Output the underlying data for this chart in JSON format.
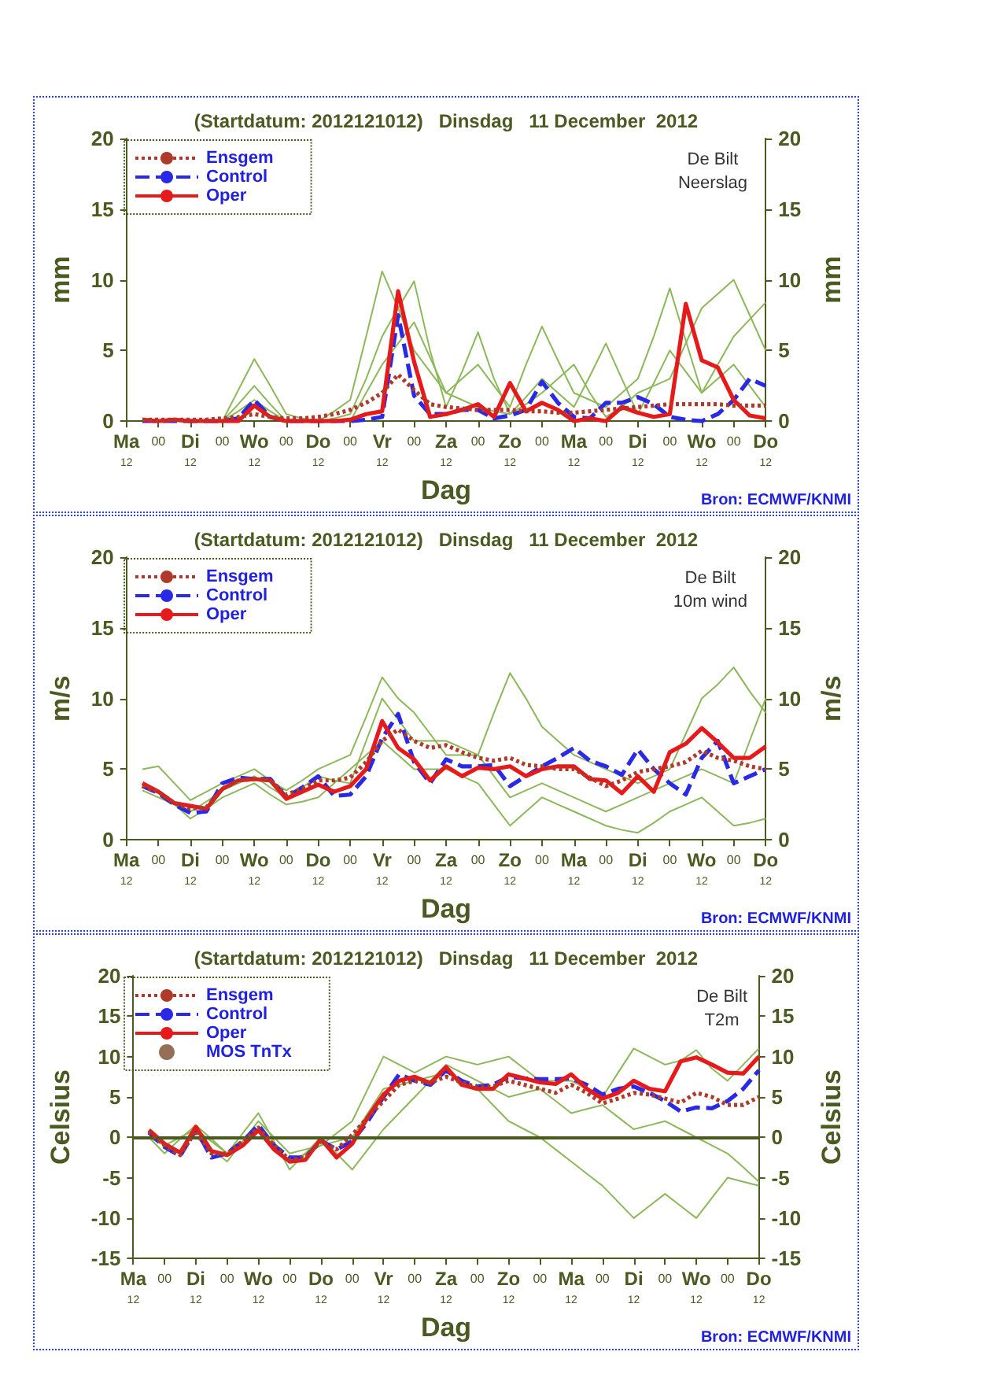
{
  "chart_data": [
    {
      "type": "line",
      "title": "(Startdatum: 2012121012)   Dinsdag   11 December  2012",
      "xlabel": "Dag",
      "ylabel": "mm",
      "y2label": "mm",
      "annotations": [
        "De Bilt\nNeerslag",
        "Bron: ECMWF/KNMI"
      ],
      "categories": [
        "Ma\n12",
        null,
        "00",
        null,
        "Di\n12",
        null,
        "00",
        null,
        "Wo\n12",
        null,
        "00",
        null,
        "Do\n12",
        null,
        "00",
        null,
        "Vr\n12",
        null,
        "00",
        null,
        "Za\n12",
        null,
        "00",
        null,
        "Zo\n12",
        null,
        "00",
        null,
        "Ma\n12",
        null,
        "00",
        null,
        "Di\n12",
        null,
        "00",
        null,
        "Wo\n12",
        null,
        "00",
        null,
        "Do\n12"
      ],
      "ylim": [
        0,
        20
      ],
      "yticks": [
        0,
        5,
        10,
        15,
        20
      ],
      "y2lim": [
        0,
        20
      ],
      "y2ticks": [
        0,
        5,
        10,
        15,
        20
      ],
      "legend": "top left",
      "marker": "none",
      "series": [
        {
          "color": "#8db85a",
          "values": [
            null,
            null,
            null,
            null,
            null,
            null,
            0,
            1.2,
            2.5,
            1.2,
            0,
            0,
            0,
            0.7,
            1.5,
            6,
            10.6,
            8,
            5,
            3.5,
            2,
            3,
            4,
            2.5,
            1,
            4,
            6.7,
            4.3,
            2,
            1.5,
            1,
            2,
            3,
            6,
            9.4,
            5.7,
            2,
            3,
            4,
            2.5,
            1
          ]
        },
        {
          "color": "#8db85a",
          "values": [
            null,
            null,
            null,
            null,
            null,
            null,
            0,
            2.2,
            4.4,
            2.5,
            0.5,
            0.2,
            0,
            0.2,
            0.5,
            3,
            6,
            8,
            9.9,
            5,
            1,
            3.5,
            6.3,
            3,
            0.5,
            1.2,
            2,
            3,
            4,
            2,
            0.3,
            1,
            2,
            2.5,
            3,
            5.5,
            8,
            9,
            10,
            7.5,
            5
          ]
        },
        {
          "color": "#8db85a",
          "values": [
            null,
            null,
            null,
            null,
            null,
            null,
            0,
            0.7,
            1.5,
            0.7,
            0,
            0,
            0,
            0,
            0,
            2,
            4,
            5.5,
            7,
            4.5,
            2,
            1.5,
            1,
            0.7,
            0.5,
            1.7,
            3,
            2,
            1,
            3.2,
            5.5,
            3,
            0.5,
            2.7,
            5,
            3.5,
            2,
            4,
            6,
            7.2,
            8.4
          ]
        },
        {
          "name": "Ensgem",
          "color": "#b03a2a",
          "line_style": "dotted",
          "values": [
            null,
            0.1,
            0.1,
            0.1,
            0.1,
            0.1,
            0.2,
            0.3,
            0.5,
            0.3,
            0.2,
            0.2,
            0.3,
            0.5,
            0.8,
            1.3,
            2,
            3.3,
            2.2,
            1.2,
            1,
            0.9,
            0.8,
            0.8,
            0.8,
            0.7,
            0.7,
            0.6,
            0.6,
            0.7,
            0.8,
            0.9,
            1,
            1.1,
            1.2,
            1.2,
            1.2,
            1.2,
            1.1,
            1.1,
            1.1
          ]
        },
        {
          "name": "Control",
          "color": "#2a2ae6",
          "line_style": "dashed",
          "values": [
            null,
            0,
            0,
            0,
            0,
            0,
            0,
            0.2,
            1.5,
            0.3,
            0,
            0,
            0,
            0,
            0,
            0.1,
            0.3,
            7.5,
            1.8,
            0.5,
            0.5,
            0.8,
            0.8,
            0.2,
            0.4,
            0.8,
            2.8,
            1.3,
            0.3,
            0.2,
            1.3,
            1.3,
            1.7,
            1.2,
            0.3,
            0.1,
            0,
            0.5,
            1.5,
            3,
            2.5
          ]
        },
        {
          "name": "Oper",
          "color": "#e61a1a",
          "line_style": "solid",
          "values": [
            null,
            0.1,
            0,
            0.1,
            0,
            0,
            0,
            0,
            1.1,
            0.3,
            0,
            0,
            0,
            0,
            0.1,
            0.5,
            0.7,
            9.2,
            4.2,
            0.3,
            0.5,
            0.8,
            1.2,
            0.3,
            2.7,
            0.7,
            1.3,
            0.8,
            0,
            0.2,
            0,
            1,
            0.6,
            0.3,
            0.5,
            8.3,
            4.3,
            3.8,
            1.5,
            0.4,
            0.2
          ]
        }
      ]
    },
    {
      "type": "line",
      "title": "(Startdatum: 2012121012)   Dinsdag   11 December  2012",
      "xlabel": "Dag",
      "ylabel": "m/s",
      "y2label": "m/s",
      "annotations": [
        "De Bilt\n10m wind",
        "Bron: ECMWF/KNMI"
      ],
      "categories": [
        "Ma\n12",
        null,
        "00",
        null,
        "Di\n12",
        null,
        "00",
        null,
        "Wo\n12",
        null,
        "00",
        null,
        "Do\n12",
        null,
        "00",
        null,
        "Vr\n12",
        null,
        "00",
        null,
        "Za\n12",
        null,
        "00",
        null,
        "Zo\n12",
        null,
        "00",
        null,
        "Ma\n12",
        null,
        "00",
        null,
        "Di\n12",
        null,
        "00",
        null,
        "Wo\n12",
        null,
        "00",
        null,
        "Do\n12"
      ],
      "ylim": [
        0,
        20
      ],
      "yticks": [
        0,
        5,
        10,
        15,
        20
      ],
      "y2lim": [
        0,
        20
      ],
      "y2ticks": [
        0,
        5,
        10,
        15,
        20
      ],
      "legend": "top left",
      "marker": "none",
      "series": [
        {
          "color": "#8db85a",
          "values": [
            null,
            3.5,
            3,
            2.5,
            2,
            2.7,
            3.5,
            4,
            4.5,
            3.7,
            3,
            3.7,
            4.5,
            4.2,
            4,
            7,
            10,
            8.5,
            7,
            7,
            7,
            6.5,
            6,
            9,
            11.8,
            10,
            8,
            7,
            6,
            5.5,
            5,
            4.5,
            4,
            4.5,
            5,
            7.5,
            10,
            11,
            12.2,
            10.5,
            9
          ]
        },
        {
          "color": "#8db85a",
          "values": [
            null,
            5,
            5.2,
            4,
            2.8,
            3.4,
            4,
            4.5,
            5,
            4.2,
            3.5,
            4.2,
            5,
            5.5,
            6,
            8.7,
            11.5,
            10,
            9,
            7.5,
            6,
            6,
            6,
            4.5,
            3,
            3.5,
            4,
            3.5,
            3,
            2.5,
            2,
            2.5,
            3,
            3.5,
            4,
            4.5,
            5,
            4.5,
            4,
            7,
            10
          ]
        },
        {
          "color": "#8db85a",
          "values": [
            null,
            4,
            3.5,
            2.5,
            1.5,
            2.2,
            3,
            3.5,
            4,
            3.2,
            2.5,
            2.7,
            3,
            4,
            5,
            6,
            7,
            6,
            5,
            5,
            5,
            4.5,
            4,
            2.5,
            1,
            2,
            3,
            2.5,
            2,
            1.5,
            1,
            0.7,
            0.5,
            1.2,
            2,
            2.5,
            3,
            2,
            1,
            1.2,
            1.5
          ]
        },
        {
          "name": "Ensgem",
          "color": "#b03a2a",
          "line_style": "dotted",
          "values": [
            null,
            3.8,
            3.4,
            2.6,
            2.2,
            2.3,
            3.6,
            4.2,
            4.3,
            4.2,
            3.2,
            3.6,
            4.2,
            4.2,
            4.4,
            5.5,
            7,
            7.8,
            7,
            6.5,
            6.7,
            6.2,
            5.8,
            5.6,
            5.8,
            5.3,
            5.2,
            5,
            5,
            4.4,
            3.8,
            4.2,
            4.8,
            5,
            5.2,
            5.5,
            6.3,
            5.8,
            5.6,
            5.2,
            5
          ]
        },
        {
          "name": "Control",
          "color": "#2a2ae6",
          "line_style": "dashed",
          "values": [
            null,
            3.8,
            3.3,
            2.5,
            1.9,
            2,
            4,
            4.4,
            4.3,
            4.3,
            3,
            3.7,
            4.5,
            3.1,
            3.2,
            4.5,
            7.2,
            8.9,
            5.5,
            4,
            5.7,
            5.2,
            5.2,
            5.3,
            3.8,
            4.5,
            5.2,
            5.8,
            6.5,
            5.6,
            5.2,
            4.6,
            6.4,
            5,
            4,
            3.2,
            5.8,
            7,
            4,
            4.5,
            5
          ]
        },
        {
          "name": "Oper",
          "color": "#e61a1a",
          "line_style": "solid",
          "values": [
            null,
            4,
            3.4,
            2.6,
            2.4,
            2.2,
            3.6,
            4.2,
            4.3,
            4.2,
            2.9,
            3.4,
            3.9,
            3.4,
            3.8,
            5,
            8.4,
            6.5,
            5.7,
            4.2,
            5.2,
            4.5,
            5.1,
            5,
            5.2,
            4.5,
            5,
            5.2,
            5.2,
            4.3,
            4.2,
            3.3,
            4.5,
            3.4,
            6.2,
            6.8,
            7.9,
            6.9,
            5.8,
            5.8,
            6.6
          ]
        }
      ]
    },
    {
      "type": "line",
      "title": "(Startdatum: 2012121012)   Dinsdag   11 December  2012",
      "xlabel": "Dag",
      "ylabel": "Celsius",
      "y2label": "Celsius",
      "annotations": [
        "De Bilt\nT2m",
        "Bron: ECMWF/KNMI"
      ],
      "categories": [
        "Ma\n12",
        null,
        "00",
        null,
        "Di\n12",
        null,
        "00",
        null,
        "Wo\n12",
        null,
        "00",
        null,
        "Do\n12",
        null,
        "00",
        null,
        "Vr\n12",
        null,
        "00",
        null,
        "Za\n12",
        null,
        "00",
        null,
        "Zo\n12",
        null,
        "00",
        null,
        "Ma\n12",
        null,
        "00",
        null,
        "Di\n12",
        null,
        "00",
        null,
        "Wo\n12",
        null,
        "00",
        null,
        "Do\n12"
      ],
      "ylim": [
        -15,
        20
      ],
      "yticks": [
        -15,
        -10,
        -5,
        0,
        5,
        10,
        15,
        20
      ],
      "y2lim": [
        -15,
        20
      ],
      "y2ticks": [
        -15,
        -10,
        -5,
        0,
        5,
        10,
        15,
        20
      ],
      "legend": "top left",
      "marker": "none",
      "ref_lines": [
        {
          "axis": "y",
          "value": 0,
          "color": "#4a5a20"
        }
      ],
      "series": [
        {
          "color": "#8db85a",
          "values": [
            null,
            0,
            -1,
            0,
            1,
            -0.5,
            -2,
            -0.5,
            1,
            -1,
            -3,
            -2,
            -1,
            -0.5,
            0,
            3,
            6,
            6.5,
            7,
            7.5,
            8,
            7,
            6,
            4,
            2,
            1,
            0,
            -1.5,
            -3,
            -4.5,
            -6,
            -8,
            -10,
            -8.5,
            -7,
            -8.5,
            -10,
            -7.5,
            -5,
            -5.5,
            -6
          ]
        },
        {
          "color": "#8db85a",
          "values": [
            null,
            0,
            -2,
            -0.2,
            1.5,
            -0.2,
            -2,
            0.5,
            3,
            -0.5,
            -4,
            -2,
            0,
            -2,
            -4,
            -1.5,
            1,
            3,
            5,
            7,
            9,
            8,
            7,
            6,
            5,
            5.5,
            6,
            4.5,
            3,
            3.5,
            4,
            2.5,
            1,
            1.5,
            2,
            1,
            0,
            -1,
            -2,
            -3.7,
            -5.5
          ]
        },
        {
          "color": "#8db85a",
          "values": [
            null,
            null,
            0,
            0,
            0,
            -1.5,
            -3,
            -0.5,
            2,
            0,
            -2,
            -1.5,
            -1,
            0.5,
            2,
            6,
            10,
            9,
            8,
            9,
            10,
            9.5,
            9,
            9.5,
            10,
            8.5,
            7,
            7,
            7,
            6,
            5,
            8,
            11,
            10,
            9,
            9.5,
            10.8,
            8.5,
            7,
            9,
            11
          ]
        },
        {
          "name": "Ensgem",
          "color": "#b03a2a",
          "line_style": "dotted",
          "values": [
            null,
            0.7,
            -1,
            -2.2,
            0.8,
            -2,
            -2,
            -0.5,
            1.2,
            -1,
            -2.8,
            -2.5,
            -0.5,
            -1.5,
            0.3,
            2.5,
            4.5,
            6.5,
            7,
            6.8,
            7.5,
            6.8,
            6.2,
            6.3,
            7,
            6.5,
            6,
            5.5,
            6.5,
            5.5,
            4.2,
            4.8,
            5.5,
            5.3,
            4.8,
            4.3,
            5.5,
            5,
            4,
            4,
            5
          ]
        },
        {
          "name": "Control",
          "color": "#2a2ae6",
          "line_style": "dashed",
          "values": [
            null,
            0.6,
            -1.2,
            -2.3,
            1,
            -2.5,
            -2,
            -0.5,
            1.5,
            -1,
            -2.5,
            -2.5,
            -0.4,
            -1.5,
            -0.5,
            2,
            5,
            7.8,
            7,
            6.5,
            8.3,
            7,
            6.3,
            6.5,
            7.5,
            7.3,
            7.2,
            7.2,
            7.3,
            6.5,
            5.3,
            6,
            6.3,
            5.5,
            4.5,
            3.2,
            3.7,
            3.6,
            4.5,
            6,
            8.3
          ]
        },
        {
          "name": "Oper",
          "color": "#e61a1a",
          "line_style": "solid",
          "values": [
            null,
            0.9,
            -0.8,
            -1.9,
            1.3,
            -1.7,
            -2.2,
            -1,
            0.9,
            -1.5,
            -3,
            -2.8,
            -0.2,
            -2.5,
            -0.8,
            2.5,
            5.3,
            7,
            7.5,
            6.7,
            8.7,
            6.5,
            6,
            6,
            7.8,
            7.3,
            6.8,
            6.6,
            7.8,
            6,
            4.8,
            5.5,
            7,
            6,
            5.7,
            9.4,
            9.9,
            9,
            8,
            7.9,
            10
          ]
        },
        {
          "name": "MOS TnTx",
          "type": "scatter",
          "marker": "circle",
          "color": "#7a4a2a",
          "values": [
            null,
            null,
            null,
            null,
            null,
            null,
            null,
            null,
            null,
            null,
            null,
            null,
            null,
            null,
            null,
            null,
            null,
            null,
            null,
            null,
            null,
            null,
            null,
            null,
            null,
            null,
            null,
            null,
            null,
            null,
            null,
            null,
            null,
            null,
            null,
            null,
            null,
            null,
            null,
            null,
            null
          ]
        }
      ]
    }
  ]
}
